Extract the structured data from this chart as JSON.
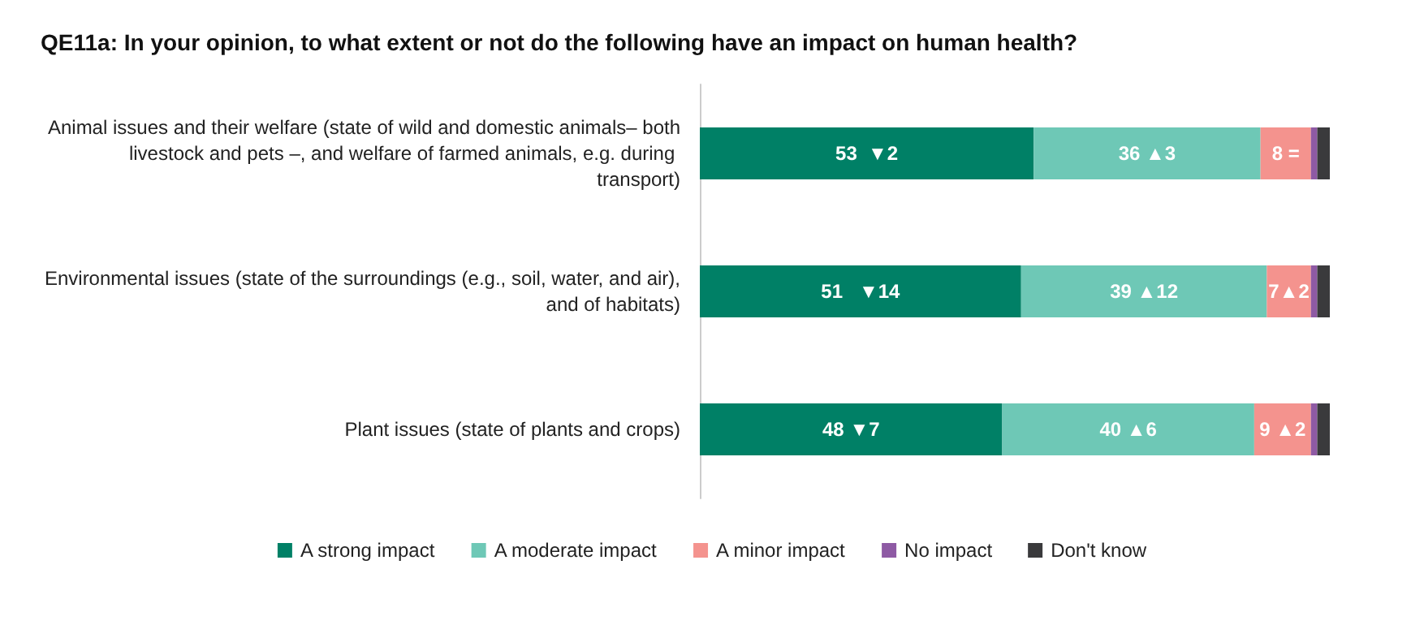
{
  "chart_data": {
    "type": "bar",
    "orientation": "horizontal",
    "stacked": true,
    "title": "QE11a: In your opinion, to what extent or not do the following have an impact on human health?",
    "categories": [
      "Animal issues and their welfare (state of wild and domestic animals– both livestock and pets –, and welfare of farmed animals, e.g. during transport)",
      "Environmental issues (state of the surroundings (e.g., soil, water, and air), and of habitats)",
      "Plant issues (state of plants and crops)"
    ],
    "series": [
      {
        "name": "A strong impact",
        "color": "#008066",
        "values": [
          53,
          51,
          48
        ],
        "value_labels": [
          "53  ▼2",
          "51   ▼14",
          "48 ▼7"
        ]
      },
      {
        "name": "A moderate impact",
        "color": "#6ec8b6",
        "values": [
          36,
          39,
          40
        ],
        "value_labels": [
          "36 ▲3",
          "39 ▲12",
          "40 ▲6"
        ]
      },
      {
        "name": "A minor impact",
        "color": "#f4938e",
        "values": [
          8,
          7,
          9
        ],
        "value_labels": [
          "8 =",
          "7▲2",
          "9 ▲2"
        ]
      },
      {
        "name": "No impact",
        "color": "#8e5aa4",
        "values": [
          1,
          1,
          1
        ],
        "value_labels": [
          null,
          null,
          null
        ]
      },
      {
        "name": "Don't know",
        "color": "#3a3a3c",
        "values": [
          2,
          2,
          2
        ],
        "value_labels": [
          null,
          null,
          null
        ]
      }
    ],
    "legend": "bottom",
    "grid": false
  }
}
